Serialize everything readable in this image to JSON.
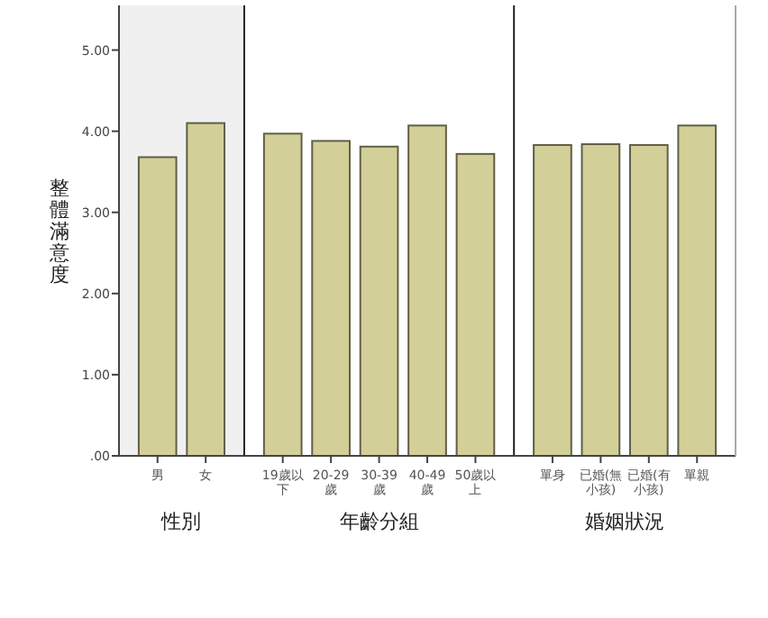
{
  "chart_data": [
    {
      "type": "bar",
      "xlabel": "性別",
      "ylabel": "整體滿意度",
      "categories": [
        "男",
        "女"
      ],
      "values": [
        3.68,
        4.1
      ],
      "color": "#d3cf98",
      "ylim": [
        0,
        5.55
      ],
      "yticks": [
        {
          "value": 0,
          "label": ".00"
        },
        {
          "value": 1,
          "label": "1.00"
        },
        {
          "value": 2,
          "label": "2.00"
        },
        {
          "value": 3,
          "label": "3.00"
        },
        {
          "value": 4,
          "label": "4.00"
        },
        {
          "value": 5,
          "label": "5.00"
        }
      ],
      "grid": false
    },
    {
      "type": "bar",
      "xlabel": "年齡分組",
      "categories": [
        "19歲以下",
        "20-29歲",
        "30-39歲",
        "40-49歲",
        "50歲以上"
      ],
      "values": [
        3.97,
        3.88,
        3.81,
        4.07,
        3.72
      ],
      "color": "#d3cf98",
      "ylim": [
        0,
        5.55
      ],
      "tick_labels": "x",
      "grid": false
    },
    {
      "type": "bar",
      "xlabel": "婚姻狀況",
      "categories": [
        "單身",
        "已婚(無小孩)",
        "已婚(有小孩)",
        "單親"
      ],
      "values": [
        3.83,
        3.84,
        3.83,
        4.07
      ],
      "color": "#d3cf98",
      "ylim": [
        0,
        5.55
      ],
      "tick_labels": "x",
      "grid": false
    }
  ]
}
